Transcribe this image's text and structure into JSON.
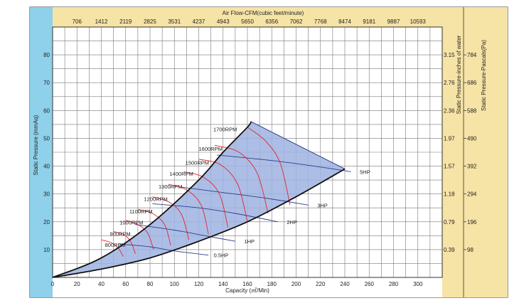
{
  "chart_data": {
    "type": "line",
    "title": "Air Flow-CFM(cubic feet/minute)",
    "xlabel": "Capacity (㎥/Min)",
    "ylabel": "Static Pressure (mmAq)",
    "y2label": "Static Pressure-inches of water",
    "y3label": "Static Pressure-Pascals(Pa)",
    "xlim": [
      0,
      320
    ],
    "ylim": [
      0,
      90
    ],
    "grid": true,
    "x_ticks": [
      "0",
      "20",
      "40",
      "60",
      "80",
      "100",
      "120",
      "140",
      "160",
      "180",
      "200",
      "220",
      "240",
      "260",
      "280",
      "300"
    ],
    "y_ticks": [
      "10",
      "20",
      "30",
      "40",
      "50",
      "60",
      "70",
      "80"
    ],
    "cfm_ticks": [
      "706",
      "1412",
      "2119",
      "2825",
      "3531",
      "4237",
      "4943",
      "5650",
      "6356",
      "7062",
      "7768",
      "8474",
      "9181",
      "9887",
      "10593"
    ],
    "inches_ticks": [
      "0.39",
      "0.79",
      "1.18",
      "1.57",
      "1.97",
      "2.36",
      "2.76",
      "3.15"
    ],
    "pascal_ticks": [
      "98",
      "196",
      "294",
      "392",
      "490",
      "588",
      "686",
      "784"
    ],
    "colors": {
      "region": "#9fb3e2",
      "rpm_curve": "#e0242c",
      "hp_curve": "#2b3f8c",
      "cfm_band": "#f6e3a6",
      "side_band": "#f6e3a6",
      "left_band": "#8fd0ea"
    },
    "boundary_upper": {
      "x": [
        0,
        40,
        80,
        120,
        140,
        160,
        163
      ],
      "y": [
        0,
        7,
        19,
        35,
        45,
        54,
        56
      ]
    },
    "boundary_lower": {
      "x": [
        0,
        40,
        80,
        120,
        160,
        200,
        240
      ],
      "y": [
        0,
        3,
        7,
        13,
        20,
        29,
        39
      ]
    },
    "rpm_series": [
      {
        "name": "800RPM",
        "label_at": {
          "x": 43,
          "y": 11
        },
        "curve": {
          "x": [
            40,
            48,
            54,
            58
          ],
          "y": [
            13.5,
            12.5,
            10.5,
            7.5
          ]
        }
      },
      {
        "name": "900RPM",
        "label_at": {
          "x": 47,
          "y": 15
        },
        "curve": {
          "x": [
            50,
            58,
            64,
            68
          ],
          "y": [
            16.5,
            15.5,
            13,
            8.5
          ]
        }
      },
      {
        "name": "1000RPM",
        "label_at": {
          "x": 55,
          "y": 19
        },
        "curve": {
          "x": [
            60,
            70,
            78,
            83
          ],
          "y": [
            20.5,
            19,
            16,
            10
          ]
        }
      },
      {
        "name": "1100RPM",
        "label_at": {
          "x": 63,
          "y": 23
        },
        "curve": {
          "x": [
            70,
            82,
            92,
            97
          ],
          "y": [
            24.5,
            23,
            19,
            11.5
          ]
        }
      },
      {
        "name": "1200RPM",
        "label_at": {
          "x": 75,
          "y": 27.5
        },
        "curve": {
          "x": [
            82,
            96,
            106,
            112
          ],
          "y": [
            29,
            27,
            22.5,
            13.5
          ]
        }
      },
      {
        "name": "1300RPM",
        "label_at": {
          "x": 87,
          "y": 32
        },
        "curve": {
          "x": [
            95,
            110,
            122,
            128
          ],
          "y": [
            33.5,
            31.5,
            26,
            15.5
          ]
        }
      },
      {
        "name": "1400RPM",
        "label_at": {
          "x": 96,
          "y": 36.5
        },
        "curve": {
          "x": [
            108,
            124,
            137,
            144
          ],
          "y": [
            38,
            36,
            30,
            18
          ]
        }
      },
      {
        "name": "1500RPM",
        "label_at": {
          "x": 109,
          "y": 40.5
        },
        "curve": {
          "x": [
            120,
            138,
            152,
            160
          ],
          "y": [
            42.5,
            40.5,
            33.5,
            20
          ]
        }
      },
      {
        "name": "1600RPM",
        "label_at": {
          "x": 120,
          "y": 45.5
        },
        "curve": {
          "x": [
            133,
            153,
            168,
            177
          ],
          "y": [
            47.5,
            45,
            37.5,
            23
          ]
        }
      },
      {
        "name": "1700RPM",
        "label_at": {
          "x": 132,
          "y": 52.5
        },
        "curve": {
          "x": [
            160,
            175,
            187,
            195
          ],
          "y": [
            54,
            49,
            41,
            26
          ]
        }
      }
    ],
    "hp_series": [
      {
        "name": "0.5HP",
        "label_at": {
          "x": 130,
          "y": 8
        },
        "curve": {
          "x": [
            55,
            80,
            100,
            128
          ],
          "y": [
            12,
            11,
            9.5,
            8
          ]
        }
      },
      {
        "name": "1HP",
        "label_at": {
          "x": 155,
          "y": 13
        },
        "curve": {
          "x": [
            68,
            100,
            125,
            150
          ],
          "y": [
            19,
            17,
            15,
            13
          ]
        }
      },
      {
        "name": "2HP",
        "label_at": {
          "x": 190,
          "y": 20
        },
        "curve": {
          "x": [
            82,
            120,
            150,
            185
          ],
          "y": [
            26.5,
            25,
            23,
            20
          ]
        }
      },
      {
        "name": "3HP",
        "label_at": {
          "x": 215,
          "y": 26
        },
        "curve": {
          "x": [
            105,
            140,
            175,
            210
          ],
          "y": [
            32.5,
            30.5,
            28.5,
            26
          ]
        }
      },
      {
        "name": "5HP",
        "label_at": {
          "x": 250,
          "y": 38
        },
        "curve": {
          "x": [
            135,
            180,
            215,
            245
          ],
          "y": [
            44,
            42,
            40,
            38
          ]
        }
      }
    ]
  }
}
